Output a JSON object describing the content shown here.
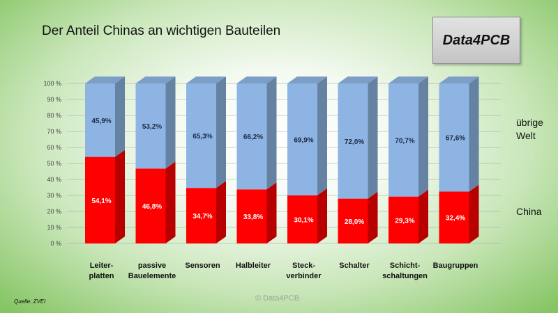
{
  "title": "Der Anteil Chinas an wichtigen Bauteilen",
  "logo": "Data4PCB",
  "source": "Quelle: ZVEI",
  "copyright": "© Data4PCB",
  "legend": {
    "top_label": "übrige Welt",
    "bottom_label": "China"
  },
  "colors": {
    "china": "#ff0000",
    "rest": "#8db4e2"
  },
  "chart_data": {
    "type": "bar",
    "stacked": true,
    "three_d": true,
    "categories": [
      [
        "Leiter-",
        "platten"
      ],
      [
        "passive",
        "Bauelemente"
      ],
      [
        "Sensoren"
      ],
      [
        "Halbleiter"
      ],
      [
        "Steck-",
        "verbinder"
      ],
      [
        "Schalter"
      ],
      [
        "Schicht-",
        "schaltungen"
      ],
      [
        "Baugruppen"
      ]
    ],
    "series": [
      {
        "name": "China",
        "values": [
          54.1,
          46.8,
          34.7,
          33.8,
          30.1,
          28.0,
          29.3,
          32.4
        ],
        "labels": [
          "54,1%",
          "46,8%",
          "34,7%",
          "33,8%",
          "30,1%",
          "28,0%",
          "29,3%",
          "32,4%"
        ]
      },
      {
        "name": "übrige Welt",
        "values": [
          45.9,
          53.2,
          65.3,
          66.2,
          69.9,
          72.0,
          70.7,
          67.6
        ],
        "labels": [
          "45,9%",
          "53,2%",
          "65,3%",
          "66,2%",
          "69,9%",
          "72,0%",
          "70,7%",
          "67,6%"
        ]
      }
    ],
    "yticks": [
      "0 %",
      "10 %",
      "20 %",
      "30 %",
      "40 %",
      "50 %",
      "60 %",
      "70 %",
      "80 %",
      "90 %",
      "100 %"
    ],
    "ylim": [
      0,
      100
    ],
    "grid": true
  }
}
